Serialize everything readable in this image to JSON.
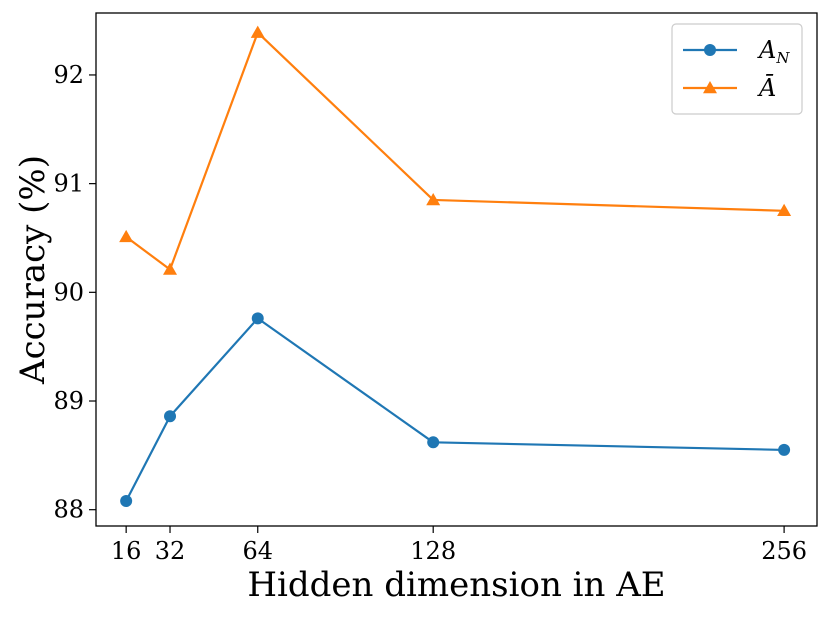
{
  "chart_data": {
    "type": "line",
    "xlabel": "Hidden dimension in AE",
    "ylabel": "Accuracy (%)",
    "x": [
      16,
      32,
      64,
      128,
      256
    ],
    "x_ticks": [
      "16",
      "32",
      "64",
      "128",
      "256"
    ],
    "y_ticks": [
      "88",
      "89",
      "90",
      "91",
      "92"
    ],
    "xlim": [
      5,
      268
    ],
    "ylim": [
      87.85,
      92.57
    ],
    "grid": false,
    "legend_position": "top-right",
    "series": [
      {
        "name": "A_N",
        "legend_main": "A",
        "legend_sub": "N",
        "marker": "circle",
        "color": "#1f77b4",
        "values": [
          88.08,
          88.86,
          89.76,
          88.62,
          88.55
        ]
      },
      {
        "name": "Ā",
        "legend_main": "Ā",
        "legend_sub": "",
        "marker": "triangle",
        "color": "#ff7f0e",
        "values": [
          90.51,
          90.21,
          92.39,
          90.85,
          90.75
        ]
      }
    ]
  }
}
